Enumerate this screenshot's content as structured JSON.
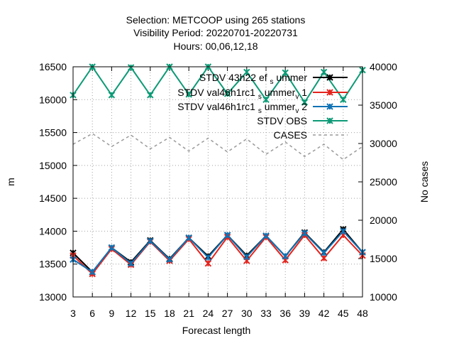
{
  "chart_data": {
    "type": "line",
    "title_lines": [
      "Selection: METCOOP using   265 stations",
      "Visibility   Period: 20220701-20220731",
      "Hours:  00,06,12,18"
    ],
    "xlabel": "Forecast length",
    "ylabel": "m",
    "y2label": "No cases",
    "x": [
      3,
      6,
      9,
      12,
      15,
      18,
      21,
      24,
      27,
      30,
      33,
      36,
      39,
      42,
      45,
      48
    ],
    "xlim": [
      3,
      48
    ],
    "ylim": [
      13000,
      16500
    ],
    "y2lim": [
      10000,
      40000
    ],
    "yticks": [
      "13000",
      "13500",
      "14000",
      "14500",
      "15000",
      "15500",
      "16000",
      "16500"
    ],
    "y2ticks": [
      "10000",
      "15000",
      "20000",
      "25000",
      "30000",
      "35000",
      "40000"
    ],
    "xticks": [
      "3",
      "6",
      "9",
      "12",
      "15",
      "18",
      "21",
      "24",
      "27",
      "30",
      "33",
      "36",
      "39",
      "42",
      "45",
      "48"
    ],
    "grid": true,
    "legend_position": "top-right",
    "series": [
      {
        "name": "STDV 43h22tg3_summer",
        "legend_main": "STDV 43h22",
        "legend_tail": "ef",
        "legend_sub": "s",
        "legend_end": "ummer",
        "color": "#000000",
        "axis": "y",
        "dashed": false,
        "values": [
          13670,
          13380,
          13750,
          13530,
          13860,
          13580,
          13900,
          13620,
          13940,
          13630,
          13930,
          13620,
          13980,
          13680,
          14030,
          13680
        ]
      },
      {
        "name": "STDV val46h1rc1_summer_v1",
        "legend_main": "STDV val46h1rc1",
        "legend_sub": "s",
        "legend_mid": "ummer",
        "legend_sub2": "v",
        "legend_end": "1",
        "color": "#e4231c",
        "axis": "y",
        "dashed": false,
        "values": [
          13630,
          13350,
          13730,
          13490,
          13840,
          13550,
          13880,
          13510,
          13910,
          13550,
          13910,
          13560,
          13940,
          13590,
          13940,
          13630
        ]
      },
      {
        "name": "STDV val46h1rc1_summer_v2",
        "legend_main": "STDV val46h1rc1",
        "legend_sub": "s",
        "legend_mid": "ummer",
        "legend_sub2": "v",
        "legend_end": "2",
        "color": "#0f72b5",
        "axis": "y",
        "dashed": false,
        "values": [
          13570,
          13380,
          13750,
          13510,
          13850,
          13570,
          13900,
          13600,
          13940,
          13610,
          13930,
          13620,
          13970,
          13670,
          14000,
          13680
        ]
      },
      {
        "name": "STDV OBS",
        "legend_main": "STDV OBS",
        "color": "#0d9a76",
        "axis": "y",
        "dashed": false,
        "values": [
          16070,
          16500,
          16070,
          16490,
          16070,
          16500,
          16080,
          16500,
          16090,
          16420,
          16000,
          16410,
          15960,
          16420,
          16000,
          16450
        ]
      },
      {
        "name": "CASES",
        "legend_main": "CASES",
        "color": "#9a9a9a",
        "axis": "y2",
        "dashed": true,
        "values": [
          29900,
          31300,
          29600,
          31100,
          29300,
          30800,
          29000,
          30700,
          28900,
          30600,
          28600,
          30200,
          28300,
          29900,
          27900,
          29600
        ]
      }
    ]
  }
}
